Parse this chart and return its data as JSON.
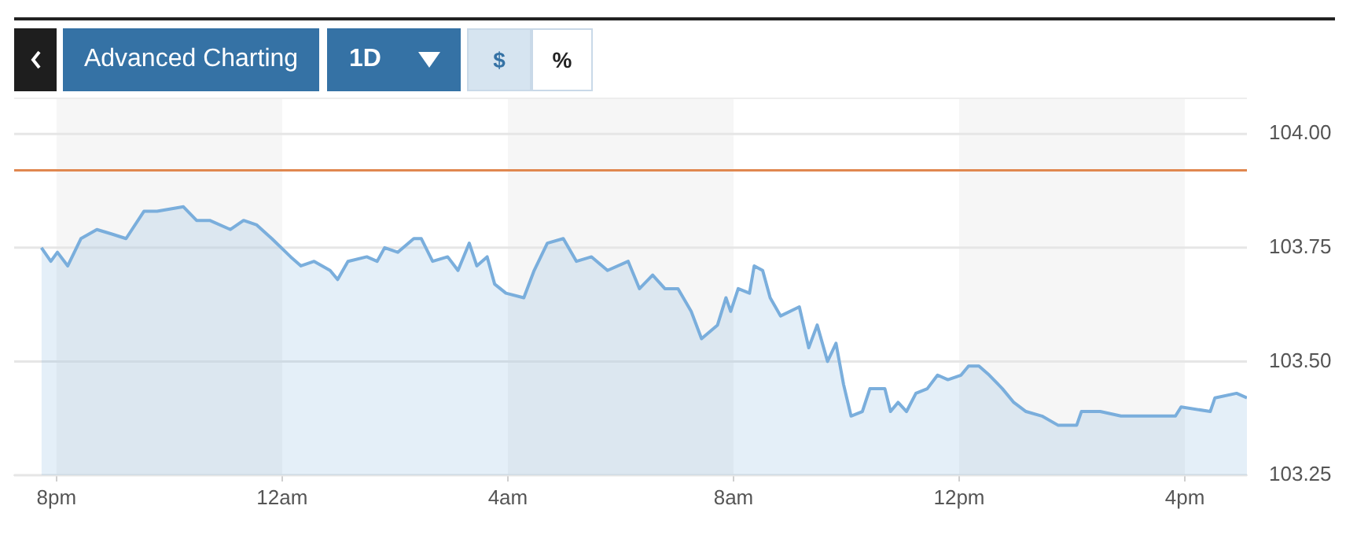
{
  "chart_data": {
    "type": "area",
    "annotations": [
      "Advanced Charting",
      "1D",
      "$",
      "%"
    ],
    "series": [
      {
        "color": "#7aaedc",
        "x": [
          "--01-01T19:44",
          "--01-01T19:54",
          "--01-01T20:01",
          "--01-01T20:12",
          "--01-01T20:26",
          "--01-01T20:43",
          "--01-01T20:59",
          "--01-01T21:14",
          "--01-01T21:33",
          "--01-01T21:47",
          "--01-01T22:15",
          "--01-01T22:29",
          "--01-01T22:43",
          "--01-01T23:05",
          "--01-01T23:19",
          "--01-01T23:33",
          "--01-01T23:49",
          "--01-02T00:09",
          "--01-02T00:20",
          "--01-02T00:34",
          "--01-02T00:51",
          "--01-02T00:59",
          "--01-02T01:10",
          "--01-02T01:30",
          "--01-02T01:41",
          "--01-02T01:49",
          "--01-02T02:03",
          "--01-02T02:20",
          "--01-02T02:28",
          "--01-02T02:40",
          "--01-02T02:56",
          "--01-02T03:07",
          "--01-02T03:19",
          "--01-02T03:27",
          "--01-02T03:38",
          "--01-02T03:46",
          "--01-02T03:58",
          "--01-02T04:17",
          "--01-02T04:28",
          "--01-02T04:42",
          "--01-02T04:59",
          "--01-02T05:13",
          "--01-02T05:29",
          "--01-02T05:46",
          "--01-02T06:08",
          "--01-02T06:20",
          "--01-02T06:34",
          "--01-02T06:47",
          "--01-02T07:01",
          "--01-02T07:15",
          "--01-02T07:26",
          "--01-02T07:43",
          "--01-02T07:52",
          "--01-02T07:57",
          "--01-02T08:05",
          "--01-02T08:17",
          "--01-02T08:22",
          "--01-02T08:31",
          "--01-02T08:39",
          "--01-02T08:50",
          "--01-02T09:10",
          "--01-02T09:20",
          "--01-02T09:29",
          "--01-02T09:40",
          "--01-02T09:49",
          "--01-02T09:57",
          "--01-02T10:05",
          "--01-02T10:17",
          "--01-02T10:25",
          "--01-02T10:41",
          "--01-02T10:47",
          "--01-02T10:55",
          "--01-02T11:04",
          "--01-02T11:14",
          "--01-02T11:26",
          "--01-02T11:37",
          "--01-02T11:48",
          "--01-02T12:02",
          "--01-02T12:10",
          "--01-02T12:21",
          "--01-02T12:32",
          "--01-02T12:46",
          "--01-02T12:58",
          "--01-02T13:11",
          "--01-02T13:28",
          "--01-02T13:45",
          "--01-02T14:05",
          "--01-02T14:10",
          "--01-02T14:30",
          "--01-02T14:52",
          "--01-02T15:20",
          "--01-02T15:50",
          "--01-02T15:56",
          "--01-02T16:27",
          "--01-02T16:32",
          "--01-02T16:55",
          "--01-02T17:06"
        ],
        "values": [
          103.75,
          103.72,
          103.74,
          103.71,
          103.77,
          103.79,
          103.78,
          103.77,
          103.83,
          103.83,
          103.84,
          103.81,
          103.81,
          103.79,
          103.81,
          103.8,
          103.77,
          103.73,
          103.71,
          103.72,
          103.7,
          103.68,
          103.72,
          103.73,
          103.72,
          103.75,
          103.74,
          103.77,
          103.77,
          103.72,
          103.73,
          103.7,
          103.76,
          103.71,
          103.73,
          103.67,
          103.65,
          103.64,
          103.7,
          103.76,
          103.77,
          103.72,
          103.73,
          103.7,
          103.72,
          103.66,
          103.69,
          103.66,
          103.66,
          103.61,
          103.55,
          103.58,
          103.64,
          103.61,
          103.66,
          103.65,
          103.71,
          103.7,
          103.64,
          103.6,
          103.62,
          103.53,
          103.58,
          103.5,
          103.54,
          103.45,
          103.38,
          103.39,
          103.44,
          103.44,
          103.39,
          103.41,
          103.39,
          103.43,
          103.44,
          103.47,
          103.46,
          103.47,
          103.49,
          103.49,
          103.47,
          103.44,
          103.41,
          103.39,
          103.38,
          103.36,
          103.36,
          103.39,
          103.39,
          103.38,
          103.38,
          103.38,
          103.4,
          103.39,
          103.42,
          103.43,
          103.42
        ]
      }
    ],
    "xlim": [
      "--01-01T19:15",
      "--01-02T17:06"
    ],
    "xticks": [
      {
        "value": "--01-01T20:00",
        "label": "8pm"
      },
      {
        "value": "--01-02T00:00",
        "label": "12am"
      },
      {
        "value": "--01-02T04:00",
        "label": "4am"
      },
      {
        "value": "--01-02T08:00",
        "label": "8am"
      },
      {
        "value": "--01-02T12:00",
        "label": "12pm"
      },
      {
        "value": "--01-02T16:00",
        "label": "4pm"
      }
    ],
    "ylim": [
      103.25,
      104.08
    ],
    "yticks": [
      {
        "value": 103.25,
        "label": "103.25"
      },
      {
        "value": 103.5,
        "label": "103.50"
      },
      {
        "value": 103.75,
        "label": "103.75"
      },
      {
        "value": 104,
        "label": "104.00"
      }
    ],
    "grid": "y",
    "ref_lines": [
      {
        "axis": "y",
        "value": 103.92,
        "color": "#e0874f"
      }
    ],
    "bands": [
      {
        "axis": "x",
        "from": "--01-01T20:00",
        "to": "--01-02T00:00",
        "color": "#f6f6f6"
      },
      {
        "axis": "x",
        "from": "--01-02T04:00",
        "to": "--01-02T08:00",
        "color": "#f6f6f6"
      },
      {
        "axis": "x",
        "from": "--01-02T12:00",
        "to": "--01-02T16:00",
        "color": "#f6f6f6"
      }
    ]
  }
}
